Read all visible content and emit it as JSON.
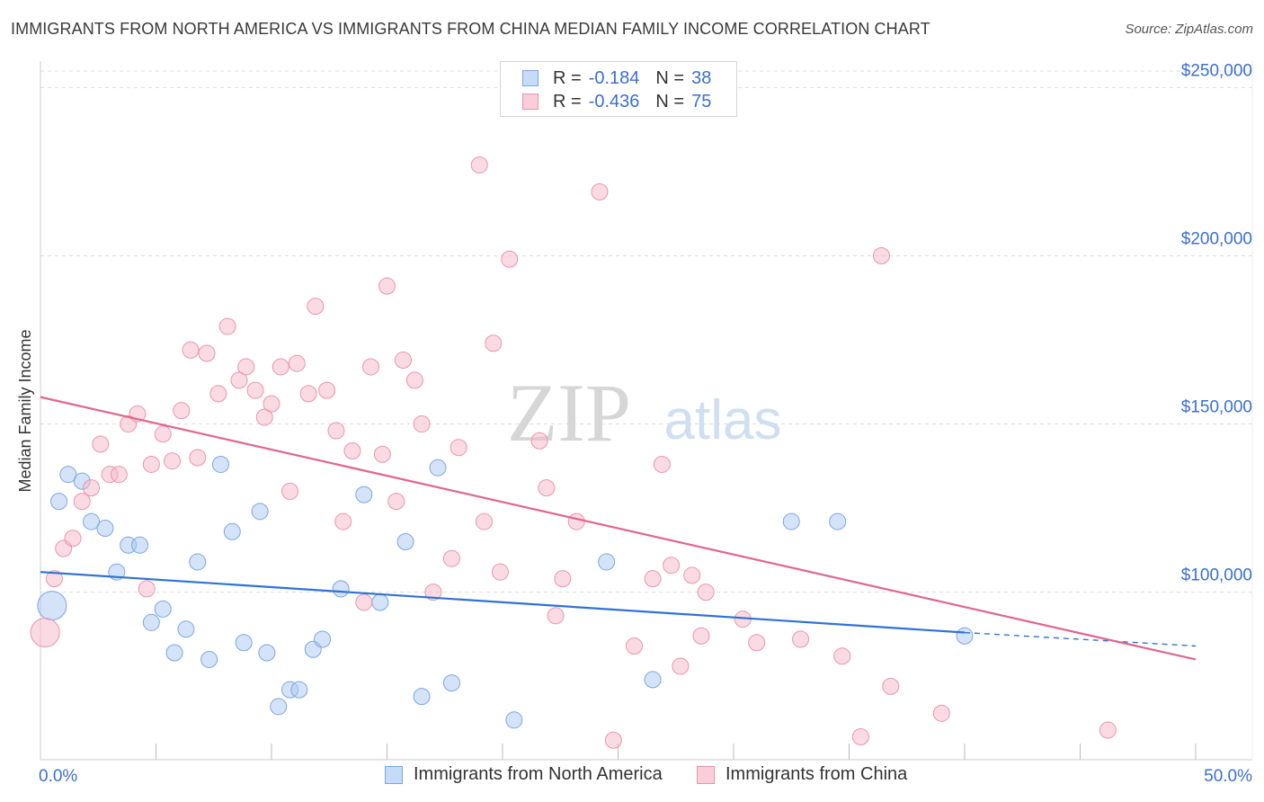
{
  "header": {
    "title": "IMMIGRANTS FROM NORTH AMERICA VS IMMIGRANTS FROM CHINA MEDIAN FAMILY INCOME CORRELATION CHART",
    "source": "Source: ZipAtlas.com"
  },
  "watermark": {
    "zip": "ZIP",
    "atlas": "atlas"
  },
  "legend": {
    "rows": [
      {
        "r_label": "R =",
        "r_value": "-0.184",
        "n_label": "N =",
        "n_value": "38",
        "color": "#a9c8f2"
      },
      {
        "r_label": "R =",
        "r_value": "-0.436",
        "n_label": "N =",
        "n_value": "75",
        "color": "#f5b8c9"
      }
    ]
  },
  "bottom_legend": {
    "north_america": "Immigrants from North America",
    "china": "Immigrants from China"
  },
  "colors": {
    "north_america_fill": "#a9c8f2",
    "north_america_line": "#3072d4",
    "china_fill": "#f5b8c9",
    "china_line": "#e0668f",
    "tick_label": "#3b6fd1",
    "grid": "#dddddd"
  },
  "chart_data": {
    "type": "scatter",
    "title": "IMMIGRANTS FROM NORTH AMERICA VS IMMIGRANTS FROM CHINA MEDIAN FAMILY INCOME CORRELATION CHART",
    "xlabel": "",
    "ylabel": "Median Family Income",
    "xlim": [
      0,
      50
    ],
    "ylim": [
      55000,
      260000
    ],
    "x_tick_labels": [
      "0.0%",
      "50.0%"
    ],
    "y_ticks": [
      100000,
      150000,
      200000,
      250000
    ],
    "y_tick_labels": [
      "$100,000",
      "$150,000",
      "$200,000",
      "$250,000"
    ],
    "grid": true,
    "legend_position": "top-center",
    "series": [
      {
        "name": "Immigrants from North America",
        "r": -0.184,
        "n": 38,
        "trend": {
          "x0": 0,
          "y0": 106000,
          "x1": 40,
          "y1": 88000,
          "dashed_to_x": 50,
          "dashed_to_y": 84000
        },
        "points": [
          {
            "x": 0.5,
            "y": 96000,
            "big": true
          },
          {
            "x": 0.8,
            "y": 127000
          },
          {
            "x": 1.2,
            "y": 135000
          },
          {
            "x": 1.8,
            "y": 133000
          },
          {
            "x": 2.2,
            "y": 121000
          },
          {
            "x": 2.8,
            "y": 119000
          },
          {
            "x": 3.3,
            "y": 106000
          },
          {
            "x": 3.8,
            "y": 114000
          },
          {
            "x": 4.3,
            "y": 114000
          },
          {
            "x": 4.8,
            "y": 91000
          },
          {
            "x": 5.3,
            "y": 95000
          },
          {
            "x": 5.8,
            "y": 82000
          },
          {
            "x": 6.3,
            "y": 89000
          },
          {
            "x": 6.8,
            "y": 109000
          },
          {
            "x": 7.3,
            "y": 80000
          },
          {
            "x": 7.8,
            "y": 138000
          },
          {
            "x": 8.3,
            "y": 118000
          },
          {
            "x": 8.8,
            "y": 85000
          },
          {
            "x": 9.5,
            "y": 124000
          },
          {
            "x": 9.8,
            "y": 82000
          },
          {
            "x": 10.3,
            "y": 66000
          },
          {
            "x": 10.8,
            "y": 71000
          },
          {
            "x": 11.2,
            "y": 71000
          },
          {
            "x": 11.8,
            "y": 83000
          },
          {
            "x": 12.2,
            "y": 86000
          },
          {
            "x": 13.0,
            "y": 101000
          },
          {
            "x": 14.0,
            "y": 129000
          },
          {
            "x": 14.7,
            "y": 97000
          },
          {
            "x": 15.8,
            "y": 115000
          },
          {
            "x": 16.5,
            "y": 69000
          },
          {
            "x": 17.2,
            "y": 137000
          },
          {
            "x": 17.8,
            "y": 73000
          },
          {
            "x": 20.5,
            "y": 62000
          },
          {
            "x": 24.5,
            "y": 109000
          },
          {
            "x": 26.5,
            "y": 74000
          },
          {
            "x": 32.5,
            "y": 121000
          },
          {
            "x": 34.5,
            "y": 121000
          },
          {
            "x": 40.0,
            "y": 87000
          }
        ]
      },
      {
        "name": "Immigrants from China",
        "r": -0.436,
        "n": 75,
        "trend": {
          "x0": 0,
          "y0": 158000,
          "x1": 50,
          "y1": 80000
        },
        "points": [
          {
            "x": 0.2,
            "y": 88000,
            "big": true
          },
          {
            "x": 0.6,
            "y": 104000
          },
          {
            "x": 1.0,
            "y": 113000
          },
          {
            "x": 1.4,
            "y": 116000
          },
          {
            "x": 1.8,
            "y": 127000
          },
          {
            "x": 2.2,
            "y": 131000
          },
          {
            "x": 2.6,
            "y": 144000
          },
          {
            "x": 3.0,
            "y": 135000
          },
          {
            "x": 3.4,
            "y": 135000
          },
          {
            "x": 3.8,
            "y": 150000
          },
          {
            "x": 4.2,
            "y": 153000
          },
          {
            "x": 4.6,
            "y": 101000
          },
          {
            "x": 4.8,
            "y": 138000
          },
          {
            "x": 5.3,
            "y": 147000
          },
          {
            "x": 5.7,
            "y": 139000
          },
          {
            "x": 6.1,
            "y": 154000
          },
          {
            "x": 6.5,
            "y": 172000
          },
          {
            "x": 6.8,
            "y": 140000
          },
          {
            "x": 7.2,
            "y": 171000
          },
          {
            "x": 7.7,
            "y": 159000
          },
          {
            "x": 8.1,
            "y": 179000
          },
          {
            "x": 8.6,
            "y": 163000
          },
          {
            "x": 8.9,
            "y": 167000
          },
          {
            "x": 9.3,
            "y": 160000
          },
          {
            "x": 9.7,
            "y": 152000
          },
          {
            "x": 10.0,
            "y": 156000
          },
          {
            "x": 10.4,
            "y": 167000
          },
          {
            "x": 10.8,
            "y": 130000
          },
          {
            "x": 11.1,
            "y": 168000
          },
          {
            "x": 11.6,
            "y": 159000
          },
          {
            "x": 11.9,
            "y": 185000
          },
          {
            "x": 12.4,
            "y": 160000
          },
          {
            "x": 12.8,
            "y": 148000
          },
          {
            "x": 13.1,
            "y": 121000
          },
          {
            "x": 13.5,
            "y": 142000
          },
          {
            "x": 14.0,
            "y": 97000
          },
          {
            "x": 14.3,
            "y": 167000
          },
          {
            "x": 14.8,
            "y": 141000
          },
          {
            "x": 15.0,
            "y": 191000
          },
          {
            "x": 15.4,
            "y": 127000
          },
          {
            "x": 15.7,
            "y": 169000
          },
          {
            "x": 16.2,
            "y": 163000
          },
          {
            "x": 16.5,
            "y": 150000
          },
          {
            "x": 17.0,
            "y": 100000
          },
          {
            "x": 17.8,
            "y": 110000
          },
          {
            "x": 18.1,
            "y": 143000
          },
          {
            "x": 19.0,
            "y": 227000
          },
          {
            "x": 19.2,
            "y": 121000
          },
          {
            "x": 19.6,
            "y": 174000
          },
          {
            "x": 19.9,
            "y": 106000
          },
          {
            "x": 20.3,
            "y": 199000
          },
          {
            "x": 21.6,
            "y": 145000
          },
          {
            "x": 21.9,
            "y": 131000
          },
          {
            "x": 22.3,
            "y": 93000
          },
          {
            "x": 22.6,
            "y": 104000
          },
          {
            "x": 23.2,
            "y": 121000
          },
          {
            "x": 24.2,
            "y": 219000
          },
          {
            "x": 24.8,
            "y": 56000
          },
          {
            "x": 25.7,
            "y": 84000
          },
          {
            "x": 26.5,
            "y": 104000
          },
          {
            "x": 26.9,
            "y": 138000
          },
          {
            "x": 27.3,
            "y": 108000
          },
          {
            "x": 27.7,
            "y": 78000
          },
          {
            "x": 28.2,
            "y": 105000
          },
          {
            "x": 28.6,
            "y": 87000
          },
          {
            "x": 28.8,
            "y": 100000
          },
          {
            "x": 30.4,
            "y": 92000
          },
          {
            "x": 31.0,
            "y": 85000
          },
          {
            "x": 32.9,
            "y": 86000
          },
          {
            "x": 34.7,
            "y": 81000
          },
          {
            "x": 35.5,
            "y": 57000
          },
          {
            "x": 36.4,
            "y": 200000
          },
          {
            "x": 36.8,
            "y": 72000
          },
          {
            "x": 39.0,
            "y": 64000
          },
          {
            "x": 46.2,
            "y": 59000
          }
        ]
      }
    ]
  }
}
